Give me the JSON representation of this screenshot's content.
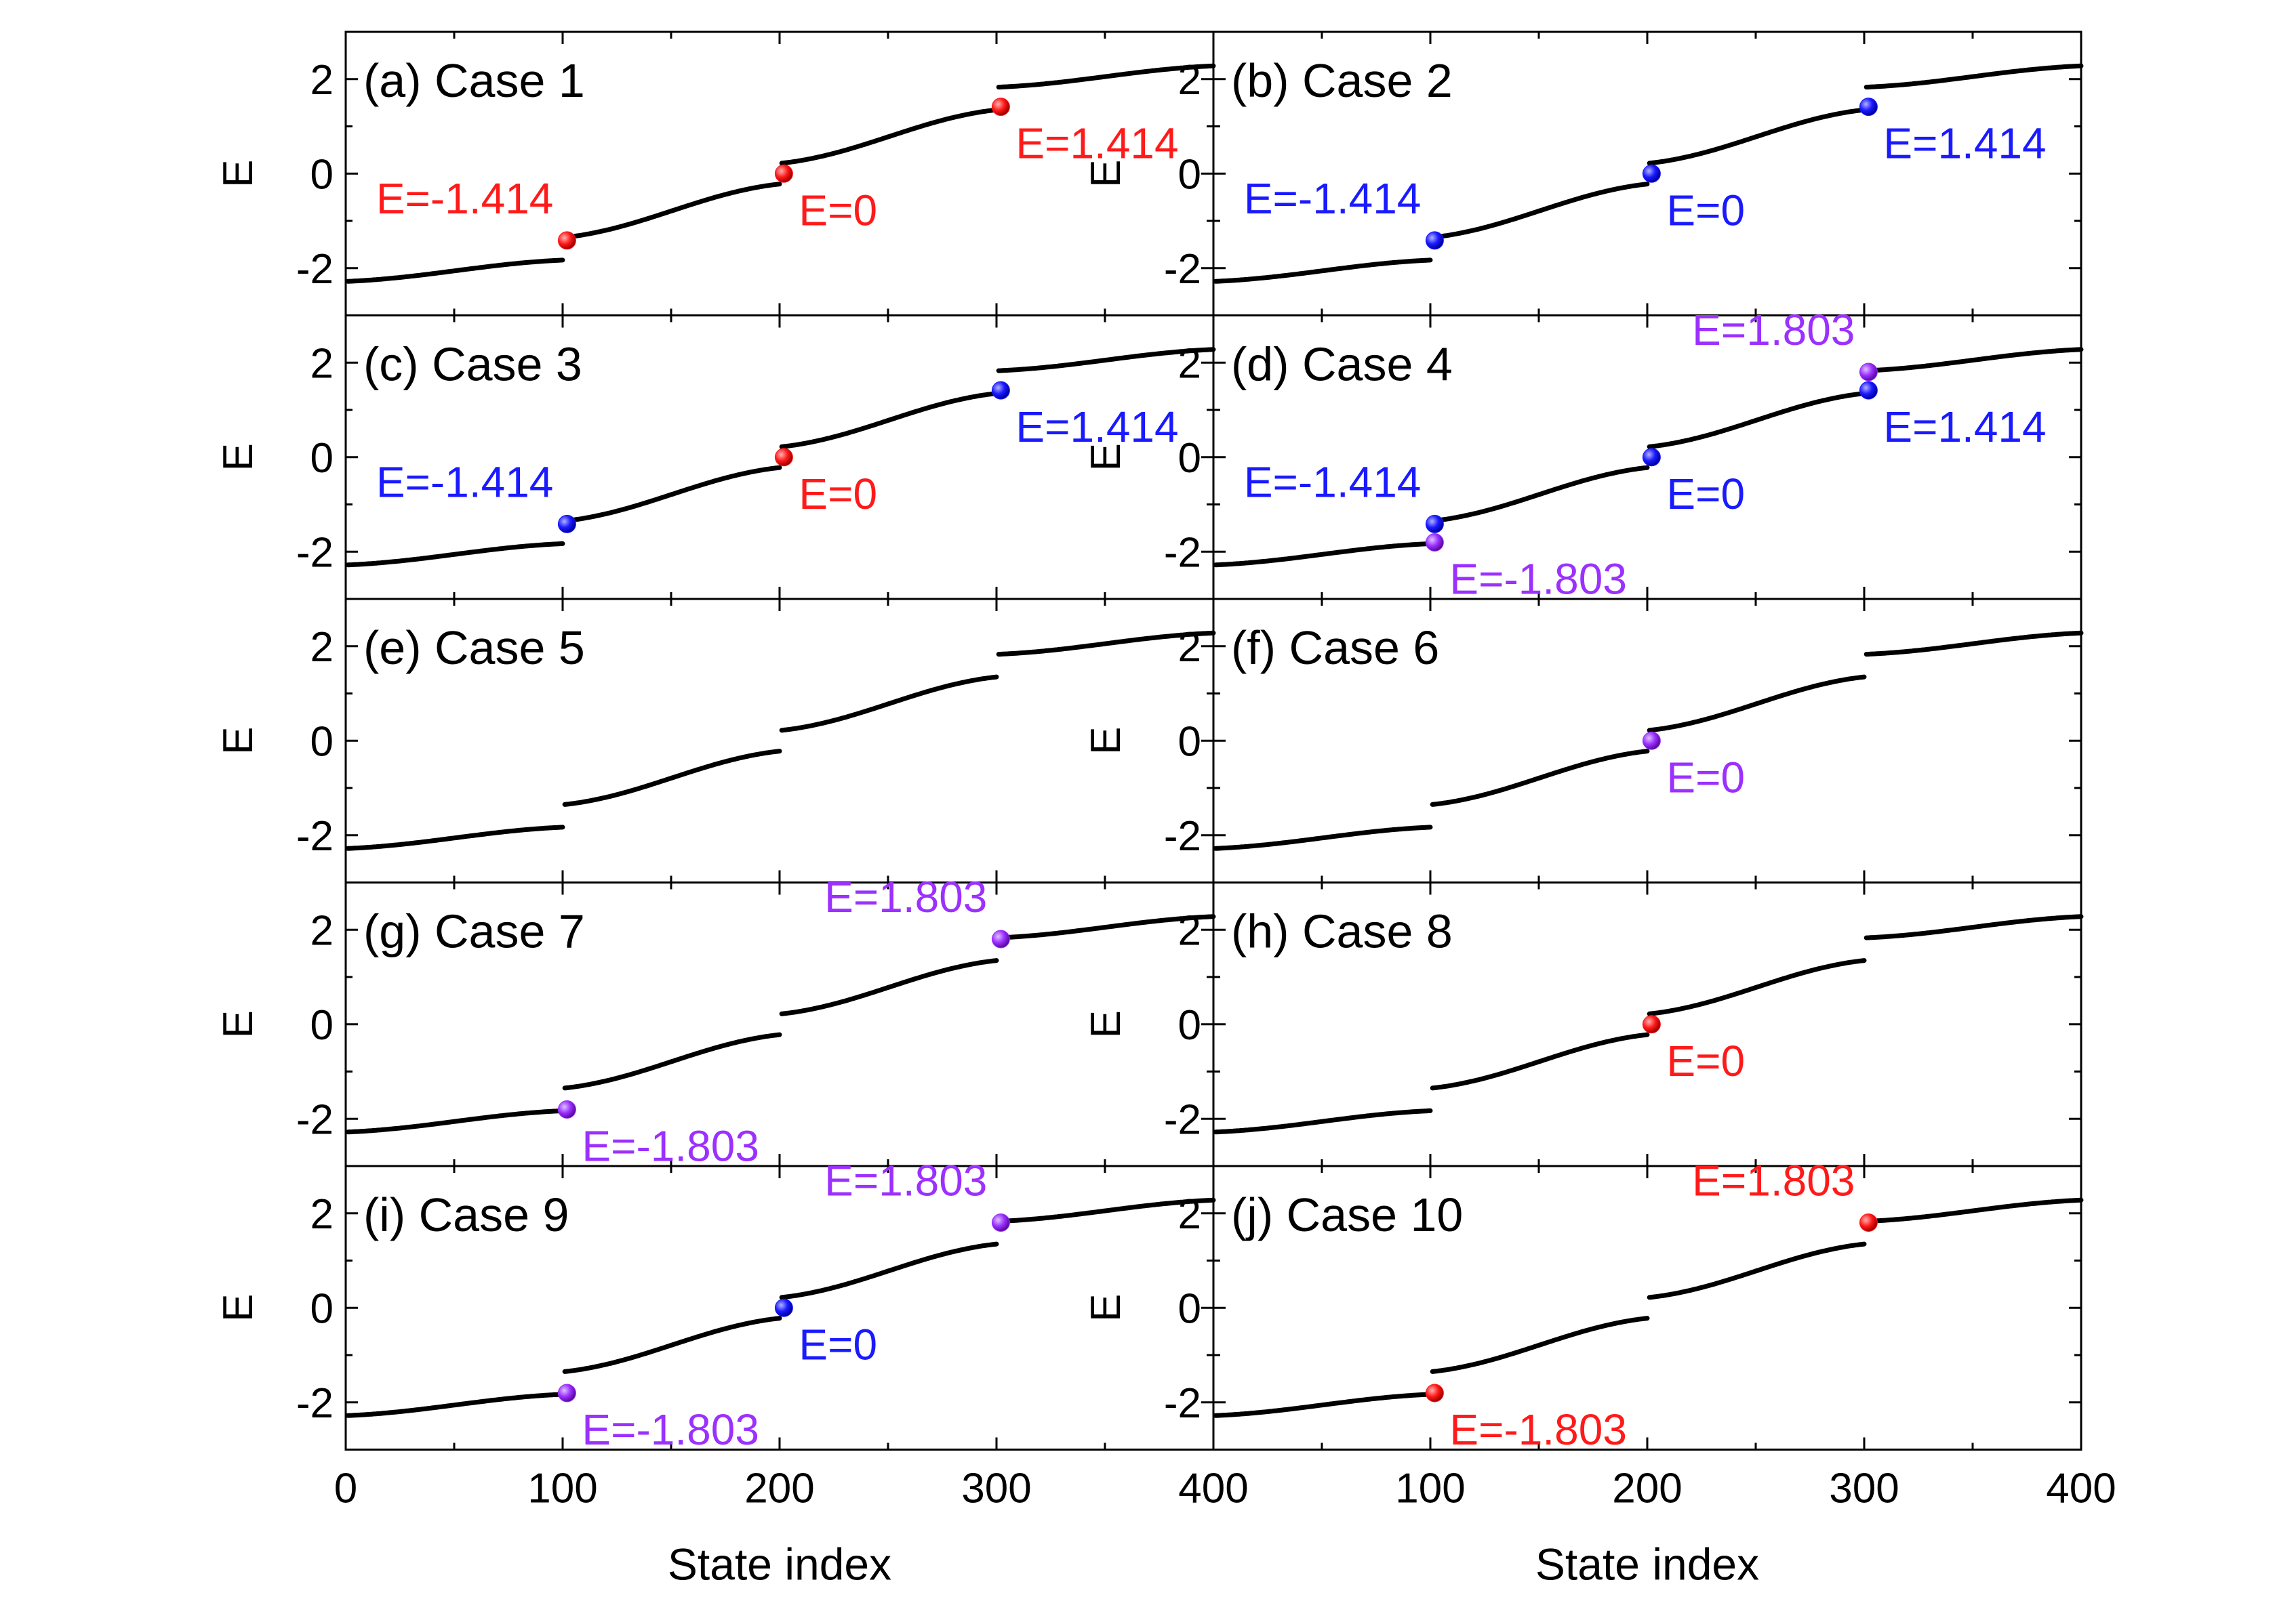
{
  "colors": {
    "red": "#ff1a1a",
    "blue": "#1a1aff",
    "purple": "#9b30ff",
    "curve": "#000000"
  },
  "chart_data": {
    "type": "scatter",
    "layout": "5 rows x 2 columns, shared x axis",
    "xlabel": "State index",
    "ylabel": "E",
    "xlim": [
      0,
      400
    ],
    "ylim": [
      -3,
      3
    ],
    "x_ticks": [
      "0",
      "100",
      "200",
      "300",
      "400"
    ],
    "y_ticks": [
      "-2",
      "0",
      "2"
    ],
    "y_tick_values": [
      -2,
      0,
      2
    ],
    "spectrum": {
      "description": "energy eigenvalues vs state index, four bands",
      "bands": [
        {
          "x_start": 1,
          "x_end": 100,
          "e_start": -2.28,
          "e_end": -1.83
        },
        {
          "x_start": 101,
          "x_end": 200,
          "e_start": -1.35,
          "e_end": -0.22
        },
        {
          "x_start": 201,
          "x_end": 300,
          "e_start": 0.22,
          "e_end": 1.35
        },
        {
          "x_start": 301,
          "x_end": 400,
          "e_start": 1.83,
          "e_end": 2.28
        }
      ]
    },
    "panels": [
      {
        "title": "(a) Case 1",
        "markers": [
          {
            "x": 100,
            "y": -1.414,
            "color": "red",
            "label": "E=-1.414",
            "lpos": "above-left"
          },
          {
            "x": 200,
            "y": 0,
            "color": "red",
            "label": "E=0",
            "lpos": "below-right"
          },
          {
            "x": 300,
            "y": 1.414,
            "color": "red",
            "label": "E=1.414",
            "lpos": "below-right"
          }
        ]
      },
      {
        "title": "(b) Case 2",
        "markers": [
          {
            "x": 100,
            "y": -1.414,
            "color": "blue",
            "label": "E=-1.414",
            "lpos": "above-left"
          },
          {
            "x": 200,
            "y": 0,
            "color": "blue",
            "label": "E=0",
            "lpos": "below-right"
          },
          {
            "x": 300,
            "y": 1.414,
            "color": "blue",
            "label": "E=1.414",
            "lpos": "below-right"
          }
        ]
      },
      {
        "title": "(c) Case 3",
        "markers": [
          {
            "x": 100,
            "y": -1.414,
            "color": "blue",
            "label": "E=-1.414",
            "lpos": "above-left"
          },
          {
            "x": 200,
            "y": 0,
            "color": "red",
            "label": "E=0",
            "lpos": "below-right"
          },
          {
            "x": 300,
            "y": 1.414,
            "color": "blue",
            "label": "E=1.414",
            "lpos": "below-right"
          }
        ]
      },
      {
        "title": "(d) Case 4",
        "markers": [
          {
            "x": 100,
            "y": -1.414,
            "color": "blue",
            "label": "E=-1.414",
            "lpos": "above-left"
          },
          {
            "x": 100,
            "y": -1.803,
            "color": "purple",
            "label": "E=-1.803",
            "lpos": "below-right"
          },
          {
            "x": 200,
            "y": 0,
            "color": "blue",
            "label": "E=0",
            "lpos": "below-right"
          },
          {
            "x": 300,
            "y": 1.414,
            "color": "blue",
            "label": "E=1.414",
            "lpos": "below-right"
          },
          {
            "x": 300,
            "y": 1.803,
            "color": "purple",
            "label": "E=1.803",
            "lpos": "above-left"
          }
        ]
      },
      {
        "title": "(e) Case 5",
        "markers": []
      },
      {
        "title": "(f) Case 6",
        "markers": [
          {
            "x": 200,
            "y": 0,
            "color": "purple",
            "label": "E=0",
            "lpos": "below-right"
          }
        ]
      },
      {
        "title": "(g) Case 7",
        "markers": [
          {
            "x": 100,
            "y": -1.803,
            "color": "purple",
            "label": "E=-1.803",
            "lpos": "below-right"
          },
          {
            "x": 300,
            "y": 1.803,
            "color": "purple",
            "label": "E=1.803",
            "lpos": "above-left"
          }
        ]
      },
      {
        "title": "(h) Case 8",
        "markers": [
          {
            "x": 200,
            "y": 0,
            "color": "red",
            "label": "E=0",
            "lpos": "below-right"
          }
        ]
      },
      {
        "title": "(i) Case 9",
        "markers": [
          {
            "x": 100,
            "y": -1.803,
            "color": "purple",
            "label": "E=-1.803",
            "lpos": "below-right"
          },
          {
            "x": 200,
            "y": 0,
            "color": "blue",
            "label": "E=0",
            "lpos": "below-right"
          },
          {
            "x": 300,
            "y": 1.803,
            "color": "purple",
            "label": "E=1.803",
            "lpos": "above-left"
          }
        ]
      },
      {
        "title": "(j) Case 10",
        "markers": [
          {
            "x": 100,
            "y": -1.803,
            "color": "red",
            "label": "E=-1.803",
            "lpos": "below-right"
          },
          {
            "x": 300,
            "y": 1.803,
            "color": "red",
            "label": "E=1.803",
            "lpos": "above-left"
          }
        ]
      }
    ]
  }
}
